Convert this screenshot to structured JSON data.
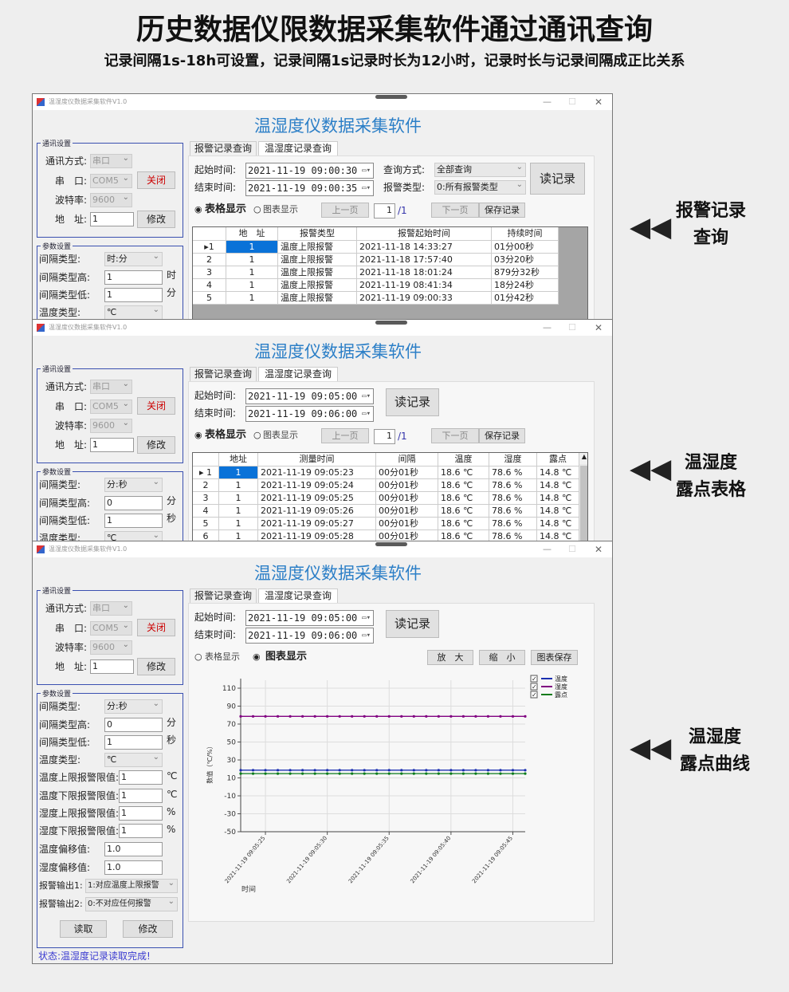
{
  "header": {
    "title": "历史数据仪限数据采集软件通过通讯查询",
    "subtitle": "记录间隔1s-18h可设置，记录间隔1s记录时长为12小时，记录时长与记录间隔成正比关系"
  },
  "side_labels": [
    {
      "line1": "报警记录",
      "line2": "查询"
    },
    {
      "line1": "温湿度",
      "line2": "露点表格"
    },
    {
      "line1": "温湿度",
      "line2": "露点曲线"
    }
  ],
  "windows": [
    {
      "title_bar": "温湿度仪数据采集软件V1.0",
      "app_title": "温湿度仪数据采集软件",
      "tabs": [
        "报警记录查询",
        "温湿度记录查询"
      ],
      "active_tab": 1,
      "comm": {
        "group": "通讯设置",
        "mode_label": "通讯方式:",
        "mode": "串口",
        "port_label": "串　口:",
        "port": "COM5",
        "close": "关闭",
        "baud_label": "波特率:",
        "baud": "9600",
        "addr_label": "地　址:",
        "addr": "1",
        "modify": "修改"
      },
      "params": {
        "group": "参数设置",
        "rows": [
          {
            "label": "间隔类型:",
            "value": "时:分",
            "kind": "select"
          },
          {
            "label": "间隔类型高:",
            "value": "1",
            "unit": "时",
            "kind": "input"
          },
          {
            "label": "间隔类型低:",
            "value": "1",
            "unit": "分",
            "kind": "input"
          },
          {
            "label": "温度类型:",
            "value": "℃",
            "kind": "select"
          }
        ]
      },
      "query": {
        "start_label": "起始时间:",
        "start": "2021-11-19 09:00:30",
        "end_label": "结束时间:",
        "end": "2021-11-19 09:00:35",
        "mode_label": "查询方式:",
        "mode": "全部查询",
        "alarm_label": "报警类型:",
        "alarm": "0:所有报警类型",
        "read": "读记录",
        "radio_table": "表格显示",
        "radio_chart": "图表显示",
        "view": "table",
        "prev": "上一页",
        "page": "1",
        "total": "/1",
        "next": "下一页",
        "save": "保存记录"
      },
      "table": {
        "columns": [
          "",
          "地　址",
          "报警类型",
          "报警起始时间",
          "持续时间"
        ],
        "rows": [
          [
            "▸1",
            "1",
            "温度上限报警",
            "2021-11-18  14:33:27",
            "01分00秒"
          ],
          [
            "2",
            "1",
            "温度上限报警",
            "2021-11-18  17:57:40",
            "03分20秒"
          ],
          [
            "3",
            "1",
            "温度上限报警",
            "2021-11-18  18:01:24",
            "879分32秒"
          ],
          [
            "4",
            "1",
            "温度上限报警",
            "2021-11-19  08:41:34",
            "18分24秒"
          ],
          [
            "5",
            "1",
            "温度上限报警",
            "2021-11-19  09:00:33",
            "01分42秒"
          ]
        ]
      }
    },
    {
      "title_bar": "温湿度仪数据采集软件V1.0",
      "app_title": "温湿度仪数据采集软件",
      "tabs": [
        "报警记录查询",
        "温湿度记录查询"
      ],
      "active_tab": 1,
      "comm": {
        "group": "通讯设置",
        "mode_label": "通讯方式:",
        "mode": "串口",
        "port_label": "串　口:",
        "port": "COM5",
        "close": "关闭",
        "baud_label": "波特率:",
        "baud": "9600",
        "addr_label": "地　址:",
        "addr": "1",
        "modify": "修改"
      },
      "params": {
        "group": "参数设置",
        "rows": [
          {
            "label": "间隔类型:",
            "value": "分:秒",
            "kind": "select"
          },
          {
            "label": "间隔类型高:",
            "value": "0",
            "unit": "分",
            "kind": "input"
          },
          {
            "label": "间隔类型低:",
            "value": "1",
            "unit": "秒",
            "kind": "input"
          },
          {
            "label": "温度类型:",
            "value": "℃",
            "kind": "select"
          }
        ]
      },
      "query": {
        "start_label": "起始时间:",
        "start": "2021-11-19 09:05:00",
        "end_label": "结束时间:",
        "end": "2021-11-19 09:06:00",
        "read": "读记录",
        "radio_table": "表格显示",
        "radio_chart": "图表显示",
        "view": "table",
        "prev": "上一页",
        "page": "1",
        "total": "/1",
        "next": "下一页",
        "save": "保存记录"
      },
      "table": {
        "columns": [
          "",
          "地址",
          "测量时间",
          "间隔",
          "温度",
          "湿度",
          "露点"
        ],
        "rows": [
          [
            "▸ 1",
            "1",
            "2021-11-19  09:05:23",
            "00分01秒",
            "18.6 ℃",
            "78.6 %",
            "14.8 ℃"
          ],
          [
            "2",
            "1",
            "2021-11-19  09:05:24",
            "00分01秒",
            "18.6 ℃",
            "78.6 %",
            "14.8 ℃"
          ],
          [
            "3",
            "1",
            "2021-11-19  09:05:25",
            "00分01秒",
            "18.6 ℃",
            "78.6 %",
            "14.8 ℃"
          ],
          [
            "4",
            "1",
            "2021-11-19  09:05:26",
            "00分01秒",
            "18.6 ℃",
            "78.6 %",
            "14.8 ℃"
          ],
          [
            "5",
            "1",
            "2021-11-19  09:05:27",
            "00分01秒",
            "18.6 ℃",
            "78.6 %",
            "14.8 ℃"
          ],
          [
            "6",
            "1",
            "2021-11-19  09:05:28",
            "00分01秒",
            "18.6 ℃",
            "78.6 %",
            "14.8 ℃"
          ]
        ]
      }
    },
    {
      "title_bar": "温湿度仪数据采集软件V1.0",
      "app_title": "温湿度仪数据采集软件",
      "tabs": [
        "报警记录查询",
        "温湿度记录查询"
      ],
      "active_tab": 1,
      "comm": {
        "group": "通讯设置",
        "mode_label": "通讯方式:",
        "mode": "串口",
        "port_label": "串　口:",
        "port": "COM5",
        "close": "关闭",
        "baud_label": "波特率:",
        "baud": "9600",
        "addr_label": "地　址:",
        "addr": "1",
        "modify": "修改"
      },
      "params": {
        "group": "参数设置",
        "rows": [
          {
            "label": "间隔类型:",
            "value": "分:秒",
            "kind": "select"
          },
          {
            "label": "间隔类型高:",
            "value": "0",
            "unit": "分",
            "kind": "input"
          },
          {
            "label": "间隔类型低:",
            "value": "1",
            "unit": "秒",
            "kind": "input"
          },
          {
            "label": "温度类型:",
            "value": "℃",
            "kind": "select"
          },
          {
            "label": "温度上限报警限值:",
            "value": "1",
            "unit": "℃",
            "kind": "input",
            "wide": true
          },
          {
            "label": "温度下限报警限值:",
            "value": "1",
            "unit": "℃",
            "kind": "input",
            "wide": true
          },
          {
            "label": "湿度上限报警限值:",
            "value": "1",
            "unit": "%",
            "kind": "input",
            "wide": true
          },
          {
            "label": "湿度下限报警限值:",
            "value": "1",
            "unit": "%",
            "kind": "input",
            "wide": true
          },
          {
            "label": "温度偏移值:",
            "value": "1.0",
            "kind": "input"
          },
          {
            "label": "湿度偏移值:",
            "value": "1.0",
            "kind": "input"
          },
          {
            "label": "报警输出1:",
            "value": "1:对应温度上限报警",
            "kind": "output"
          },
          {
            "label": "报警输出2:",
            "value": "0:不对应任何报警",
            "kind": "output"
          }
        ],
        "read": "读取",
        "modify": "修改"
      },
      "status": "状态:温湿度记录读取完成!",
      "query": {
        "start_label": "起始时间:",
        "start": "2021-11-19 09:05:00",
        "end_label": "结束时间:",
        "end": "2021-11-19 09:06:00",
        "read": "读记录",
        "radio_table": "表格显示",
        "radio_chart": "图表显示",
        "view": "chart",
        "zoom_in": "放　大",
        "zoom_out": "缩　小",
        "save_chart": "图表保存"
      }
    }
  ],
  "chart_data": {
    "type": "line",
    "xlabel": "时间",
    "ylabel": "数值（℃/%）",
    "ylim": [
      -50,
      110
    ],
    "yticks": [
      110,
      90,
      70,
      50,
      30,
      10,
      -10,
      -30,
      -50
    ],
    "x_start": "2021-11-19 09:05:23",
    "x_end": "2021-11-19 09:05:46",
    "xticks": [
      "2021-11-19 09:05:25",
      "2021-11-19 09:05:30",
      "2021-11-19 09:05:35",
      "2021-11-19 09:05:40",
      "2021-11-19 09:05:45"
    ],
    "grid": true,
    "legend": "top-right",
    "series": [
      {
        "name": "温度",
        "color": "#1a2fb0",
        "value_each_second": 18.6,
        "checked": true
      },
      {
        "name": "湿度",
        "color": "#800080",
        "value_each_second": 78.6,
        "checked": true
      },
      {
        "name": "露点",
        "color": "#0a7a1a",
        "value_each_second": 14.8,
        "checked": true
      }
    ]
  }
}
